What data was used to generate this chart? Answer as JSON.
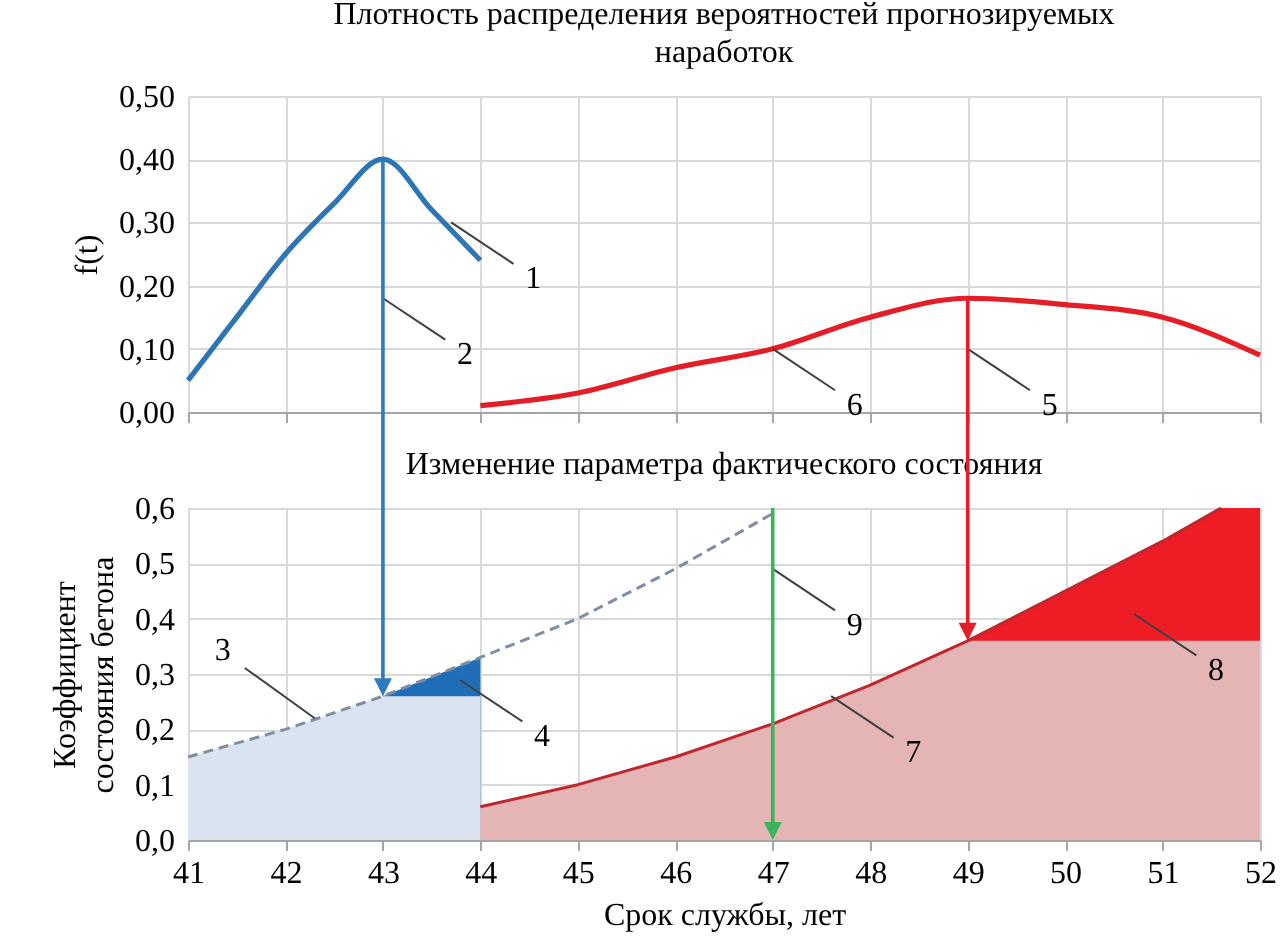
{
  "chart_data": [
    {
      "type": "line",
      "title": "Плотность распределения вероятностей прогнозируемых наработок",
      "ylabel": "f(t)",
      "xlim": [
        41,
        52
      ],
      "xticks": [
        41,
        42,
        43,
        44,
        45,
        46,
        47,
        48,
        49,
        50,
        51,
        52
      ],
      "ylim": [
        0,
        0.5
      ],
      "yticks": [
        {
          "value": 0,
          "label": "0,00"
        },
        {
          "value": 0.1,
          "label": "0,10"
        },
        {
          "value": 0.2,
          "label": "0,20"
        },
        {
          "value": 0.3,
          "label": "0,30"
        },
        {
          "value": 0.4,
          "label": "0,40"
        },
        {
          "value": 0.5,
          "label": "0,50"
        }
      ],
      "grid": true,
      "tick_labels": "y",
      "series": [
        {
          "color": "#2e75b6",
          "x": [
            41,
            41.5,
            42,
            42.5,
            43,
            43.5,
            44
          ],
          "values": [
            0.05,
            0.15,
            0.25,
            0.33,
            0.4,
            0.32,
            0.24
          ]
        },
        {
          "color": "#e41e26",
          "x": [
            44,
            45,
            46,
            47,
            48,
            49,
            50,
            51,
            52
          ],
          "values": [
            0.01,
            0.03,
            0.07,
            0.1,
            0.15,
            0.18,
            0.17,
            0.15,
            0.09
          ]
        }
      ],
      "ref_lines": [
        {
          "axis": "x",
          "value": 43,
          "color": "#2e7bbf"
        },
        {
          "axis": "x",
          "value": 49,
          "color": "#e41e26"
        }
      ],
      "annotations": [
        {
          "text": "1",
          "x": 43.7,
          "y": 0.3
        },
        {
          "text": "2",
          "x": 43,
          "y": 0.18
        },
        {
          "text": "6",
          "x": 47,
          "y": 0.1
        },
        {
          "text": "5",
          "x": 49,
          "y": 0.1
        }
      ]
    },
    {
      "type": "area",
      "title": "Изменение параметра фактического состояния",
      "xlabel": "Срок службы, лет",
      "ylabel": "Коэффициент состояния бетона",
      "xlim": [
        41,
        52
      ],
      "xticks": [
        41,
        42,
        43,
        44,
        45,
        46,
        47,
        48,
        49,
        50,
        51,
        52
      ],
      "ylim": [
        0,
        0.6
      ],
      "yticks": [
        {
          "value": 0,
          "label": "0,0"
        },
        {
          "value": 0.1,
          "label": "0,1"
        },
        {
          "value": 0.2,
          "label": "0,2"
        },
        {
          "value": 0.3,
          "label": "0,3"
        },
        {
          "value": 0.4,
          "label": "0,4"
        },
        {
          "value": 0.5,
          "label": "0,5"
        },
        {
          "value": 0.6,
          "label": "0,6"
        }
      ],
      "grid": true,
      "series": [
        {
          "color": "#1f6eb8",
          "x": [
            43,
            44
          ],
          "values": [
            0.26,
            0.33
          ]
        },
        {
          "color": "#dae3f0",
          "x": [
            41,
            42,
            43,
            44
          ],
          "values": [
            0.15,
            0.2,
            0.26,
            0.26
          ]
        },
        {
          "color": "#ee1c25",
          "x": [
            49,
            50,
            51,
            51.6,
            52
          ],
          "values": [
            0.36,
            0.45,
            0.54,
            0.6,
            0.6
          ]
        },
        {
          "color": "#e5b4b4",
          "x": [
            44,
            45,
            46,
            47,
            48,
            49,
            52
          ],
          "values": [
            0.06,
            0.1,
            0.15,
            0.21,
            0.28,
            0.36,
            0.36
          ]
        },
        {
          "type": "line",
          "color": "#c0272d",
          "x": [
            44,
            45,
            46,
            47,
            48,
            49,
            50,
            51,
            51.6
          ],
          "values": [
            0.06,
            0.1,
            0.15,
            0.21,
            0.28,
            0.36,
            0.45,
            0.54,
            0.6
          ]
        },
        {
          "type": "line",
          "line_style": "dashed",
          "color": "#7f8ea3",
          "x": [
            41,
            42,
            43,
            44,
            45,
            46,
            47
          ],
          "values": [
            0.15,
            0.2,
            0.26,
            0.33,
            0.4,
            0.49,
            0.59
          ]
        }
      ],
      "ref_lines": [
        {
          "axis": "x",
          "value": 47,
          "color": "#3cb45a"
        }
      ],
      "annotations": [
        {
          "text": "3",
          "x": 42.3,
          "y": 0.22
        },
        "4",
        {
          "text": "7",
          "x": 47.6,
          "y": 0.26
        },
        "8",
        {
          "text": "9",
          "x": 47,
          "y": 0.49
        }
      ]
    }
  ]
}
